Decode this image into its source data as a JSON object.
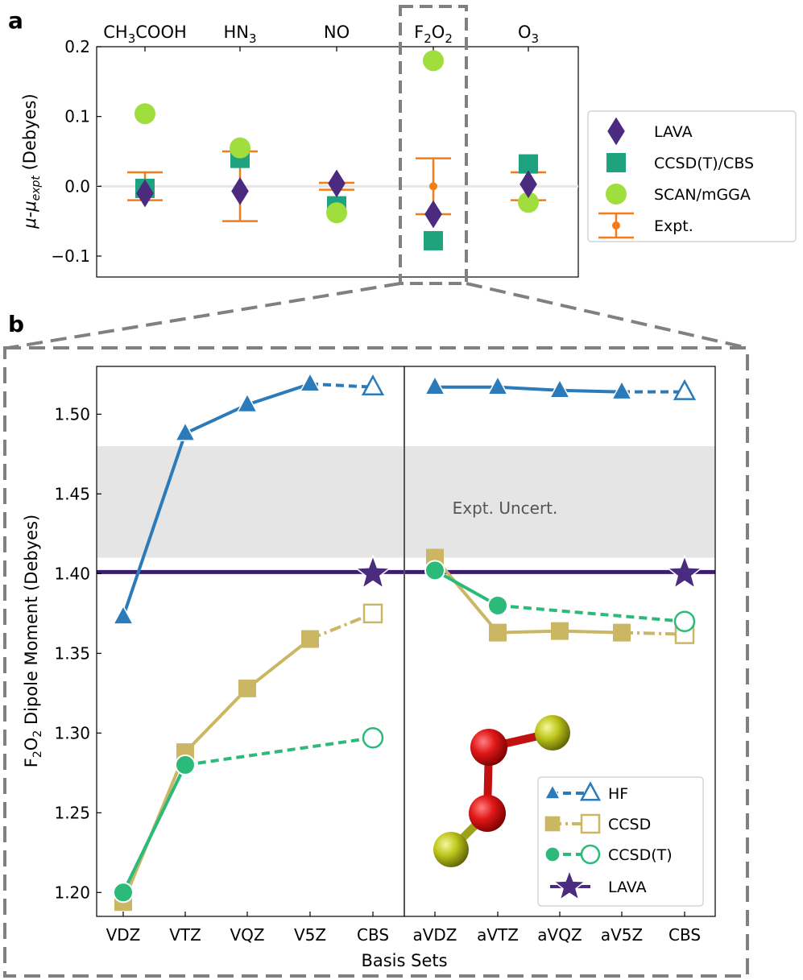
{
  "panel_labels": {
    "a": "a",
    "b": "b"
  },
  "chart_data": [
    {
      "type": "scatter",
      "panel": "a",
      "ylabel": "μ-μexpt (Debyes)",
      "ylabel_parts": {
        "mu": "μ",
        "dash": "-",
        "mu2": "μ",
        "sub": "expt",
        "units": " (Debyes)"
      },
      "ylim": [
        -0.13,
        0.2
      ],
      "yticks": [
        -0.1,
        0.0,
        0.1,
        0.2
      ],
      "ytick_labels": [
        "−0.1",
        "0.0",
        "0.1",
        "0.2"
      ],
      "categories": [
        {
          "base": "CH",
          "sub": "3",
          "rest": "COOH"
        },
        {
          "base": "HN",
          "sub": "3",
          "rest": ""
        },
        {
          "base": "NO",
          "sub": "",
          "rest": ""
        },
        {
          "base": "F",
          "sub": "2",
          "rest": "O",
          "sub2": "2"
        },
        {
          "base": "O",
          "sub": "3",
          "rest": ""
        }
      ],
      "category_labels": [
        "CH3COOH",
        "HN3",
        "NO",
        "F2O2",
        "O3"
      ],
      "series": [
        {
          "name": "LAVA",
          "marker": "diamond",
          "color": "#4b2b7f",
          "values": [
            -0.01,
            -0.007,
            0.004,
            -0.04,
            0.003
          ]
        },
        {
          "name": "CCSD(T)/CBS",
          "marker": "square",
          "color": "#1fa37f",
          "values": [
            -0.003,
            0.04,
            -0.028,
            -0.078,
            0.032
          ]
        },
        {
          "name": "SCAN/mGGA",
          "marker": "circle",
          "color": "#9fde3c",
          "values": [
            0.104,
            0.055,
            -0.038,
            0.18,
            -0.023
          ]
        },
        {
          "name": "Expt.",
          "marker": "errorbar",
          "color": "#f47c16",
          "values": [
            0,
            0,
            0,
            0,
            0
          ],
          "errors": [
            0.02,
            0.05,
            0.005,
            0.04,
            0.02
          ]
        }
      ],
      "highlighted_category": "F2O2"
    },
    {
      "type": "line",
      "panel": "b",
      "xlabel": "Basis Sets",
      "ylabel": "F2O2 Dipole Moment (Debyes)",
      "ylabel_parts": {
        "a": "F",
        "sub1": "2",
        "b": "O",
        "sub2": "2",
        "rest": " Dipole Moment (Debyes)"
      },
      "ylim": [
        1.185,
        1.53
      ],
      "yticks": [
        1.2,
        1.25,
        1.3,
        1.35,
        1.4,
        1.45,
        1.5
      ],
      "ytick_labels": [
        "1.20",
        "1.25",
        "1.30",
        "1.35",
        "1.40",
        "1.45",
        "1.50"
      ],
      "categories": [
        "VDZ",
        "VTZ",
        "VQZ",
        "V5Z",
        "CBS",
        "aVDZ",
        "aVTZ",
        "aVQZ",
        "aV5Z",
        "CBS"
      ],
      "expt_band": [
        1.41,
        1.48
      ],
      "expt_band_label": "Expt. Uncert.",
      "lava_value": 1.401,
      "series": [
        {
          "name": "HF",
          "color": "#2b7bba",
          "marker": "triangle",
          "values": [
            1.373,
            1.488,
            1.506,
            1.519,
            1.517,
            1.517,
            1.517,
            1.515,
            1.514,
            1.514
          ]
        },
        {
          "name": "CCSD",
          "color": "#cbb663",
          "marker": "square",
          "values": [
            1.194,
            1.288,
            1.328,
            1.359,
            1.375,
            1.41,
            1.363,
            1.364,
            1.363,
            1.362
          ]
        },
        {
          "name": "CCSD(T)",
          "color": "#2bba7a",
          "marker": "circle",
          "values": [
            1.2,
            1.28,
            null,
            null,
            1.297,
            1.402,
            1.38,
            null,
            null,
            1.37
          ]
        },
        {
          "name": "LAVA",
          "color": "#4b2b7f",
          "marker": "star",
          "values": [
            null,
            null,
            null,
            null,
            1.4,
            null,
            null,
            null,
            null,
            1.4
          ]
        }
      ],
      "legend": [
        "HF",
        "CCSD",
        "CCSD(T)",
        "LAVA"
      ]
    }
  ]
}
